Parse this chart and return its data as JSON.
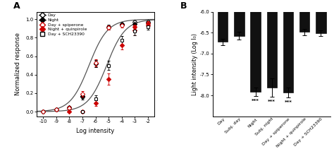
{
  "panel_A": {
    "xlabel": "Log intensity",
    "ylabel": "Normalized response",
    "xlim": [
      -10.5,
      -1.5
    ],
    "ylim": [
      -0.05,
      1.08
    ],
    "xticks": [
      -10,
      -9,
      -8,
      -7,
      -6,
      -5,
      -4,
      -3,
      -2
    ],
    "yticks": [
      0.0,
      0.2,
      0.4,
      0.6,
      0.8,
      1.0
    ],
    "series": {
      "Day": {
        "x": [
          -10,
          -9,
          -8,
          -7,
          -6,
          -5,
          -4,
          -3,
          -2
        ],
        "y": [
          0.0,
          0.02,
          0.04,
          0.16,
          0.52,
          0.91,
          0.95,
          0.97,
          0.97
        ],
        "yerr": [
          0.005,
          0.01,
          0.015,
          0.03,
          0.04,
          0.02,
          0.015,
          0.015,
          0.015
        ]
      },
      "Night": {
        "x": [
          -10,
          -9,
          -8,
          -7,
          -6,
          -5,
          -4,
          -3,
          -2
        ],
        "y": [
          0.0,
          0.02,
          0.05,
          0.17,
          0.52,
          0.92,
          0.94,
          0.95,
          0.96
        ],
        "yerr": [
          0.005,
          0.01,
          0.015,
          0.025,
          0.035,
          0.02,
          0.015,
          0.015,
          0.015
        ]
      },
      "Day_spiperone": {
        "x": [
          -10,
          -9,
          -8,
          -7,
          -6,
          -5,
          -4,
          -3,
          -2
        ],
        "y": [
          0.0,
          0.02,
          0.04,
          0.19,
          0.53,
          0.91,
          0.93,
          0.88,
          0.93
        ],
        "yerr": [
          0.005,
          0.01,
          0.02,
          0.03,
          0.04,
          0.02,
          0.02,
          0.05,
          0.03
        ]
      },
      "Night_quinpirole": {
        "x": [
          -8,
          -7,
          -6,
          -5,
          -4,
          -3,
          -2
        ],
        "y": [
          0.0,
          0.0,
          0.09,
          0.35,
          0.72,
          0.92,
          0.96
        ],
        "yerr": [
          0.01,
          0.01,
          0.03,
          0.06,
          0.05,
          0.02,
          0.02
        ]
      },
      "Day_SCH23390": {
        "x": [
          -7,
          -6,
          -5,
          -4,
          -3,
          -2
        ],
        "y": [
          0.0,
          0.14,
          0.5,
          0.77,
          0.87,
          0.92
        ],
        "yerr": [
          0.015,
          0.04,
          0.05,
          0.05,
          0.04,
          0.03
        ]
      }
    },
    "curve_day_night": {
      "x0": -6.5,
      "k": 1.4
    },
    "curve_sch": {
      "x0": -5.15,
      "k": 1.4
    },
    "legend": [
      {
        "label": "Day",
        "marker": "D",
        "mfc": "white",
        "mec": "black",
        "color": "black",
        "ms": 4.0
      },
      {
        "label": "Night",
        "marker": "D",
        "mfc": "black",
        "mec": "black",
        "color": "black",
        "ms": 4.0
      },
      {
        "label": "Day + spiperone",
        "marker": "D",
        "mfc": "white",
        "mec": "#cc0000",
        "color": "#cc0000",
        "ms": 4.0
      },
      {
        "label": "Night + quinpirole",
        "marker": "D",
        "mfc": "#cc0000",
        "mec": "#cc0000",
        "color": "#cc0000",
        "ms": 4.0
      },
      {
        "label": "Day + SCH23390",
        "marker": "s",
        "mfc": "white",
        "mec": "black",
        "color": "black",
        "ms": 4.0
      }
    ]
  },
  "panel_B": {
    "ylabel": "Light intensity (Log I₀)",
    "ylim": [
      -8.5,
      -6.0
    ],
    "yticks": [
      -8.0,
      -7.5,
      -7.0,
      -6.5,
      -6.0
    ],
    "categories": [
      "Day",
      "Subj. day",
      "Night",
      "Subj. night",
      "Day + spiperone",
      "Night + quinpirole",
      "Day + SCH23390"
    ],
    "values": [
      -6.72,
      -6.57,
      -7.92,
      -7.82,
      -7.93,
      -6.48,
      -6.51
    ],
    "yerr": [
      0.07,
      0.1,
      0.1,
      0.22,
      0.12,
      0.08,
      0.07
    ],
    "bar_color": "#111111",
    "sig_labels": [
      "",
      "",
      "***",
      "***",
      "***",
      "",
      ""
    ]
  }
}
